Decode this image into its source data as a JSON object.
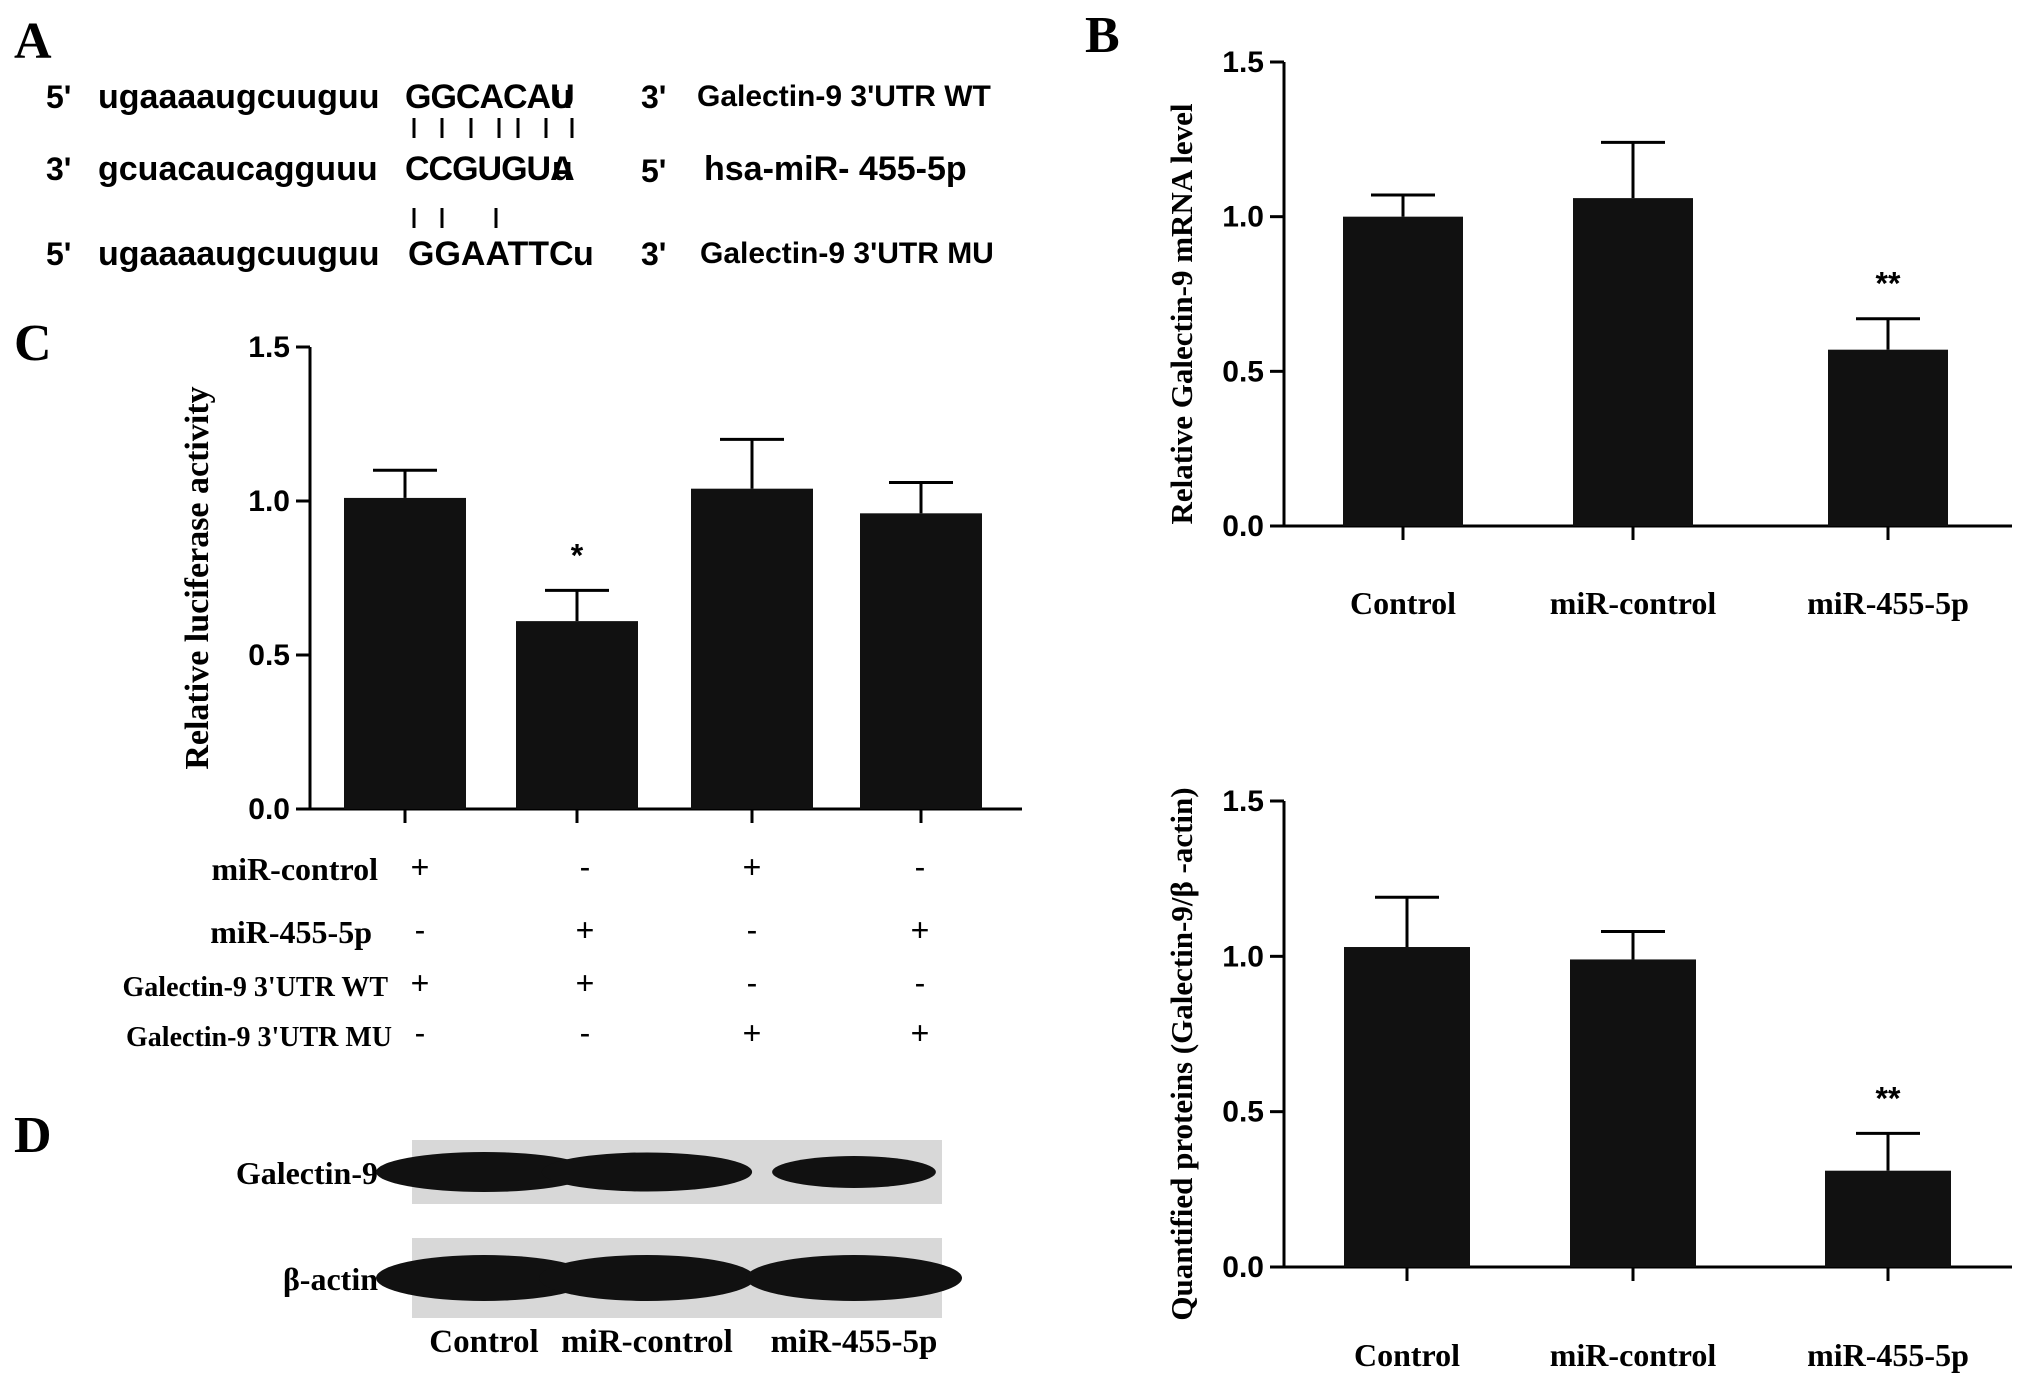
{
  "figure": {
    "panels": {
      "A": {
        "label": "A",
        "rows": [
          {
            "left_end": "5'",
            "lower": "ugaaaaugcuuguu",
            "site": "GGCACAU",
            "tail": "u",
            "right_end": "3'",
            "name": "Galectin-9 3'UTR WT"
          },
          {
            "left_end": "3'",
            "lower": "gcuacaucagguuu",
            "site": "CCGUGUA",
            "tail": "u",
            "right_end": "5'",
            "name": "hsa-miR- 455-5p"
          },
          {
            "left_end": "5'",
            "lower": "ugaaaaugcuuguu",
            "site": "GGAATTC",
            "tail": "u",
            "right_end": "3'",
            "name": "Galectin-9 3'UTR MU"
          }
        ]
      },
      "B": {
        "label": "B"
      },
      "C": {
        "label": "C",
        "table_rows": [
          {
            "label": "miR-control",
            "values": [
              "+",
              "-",
              "+",
              "-"
            ]
          },
          {
            "label": "miR-455-5p",
            "values": [
              "-",
              "+",
              "-",
              "+"
            ]
          },
          {
            "label": "Galectin-9 3'UTR WT",
            "values": [
              "+",
              "+",
              "-",
              "-"
            ]
          },
          {
            "label": "Galectin-9 3'UTR MU",
            "values": [
              "-",
              "-",
              "+",
              "+"
            ]
          }
        ]
      },
      "D": {
        "label": "D",
        "blot_labels": [
          "Galectin-9",
          "β-actin"
        ],
        "lanes": [
          "Control",
          "miR-control",
          "miR-455-5p"
        ],
        "relative_band_intensity": {
          "Galectin-9": [
            1.0,
            0.95,
            0.55
          ],
          "β-actin": [
            1.0,
            1.0,
            1.0
          ]
        }
      }
    }
  },
  "chart_data": [
    {
      "id": "B-top",
      "type": "bar",
      "categories": [
        "Control",
        "miR-control",
        "miR-455-5p"
      ],
      "values": [
        1.0,
        1.06,
        0.57
      ],
      "errors": [
        0.07,
        0.18,
        0.1
      ],
      "annotations": [
        "",
        "",
        "**"
      ],
      "ylabel": "Relative Galectin-9 mRNA level",
      "xlabel": "",
      "ylim": [
        0,
        1.5
      ],
      "yticks": [
        "0.0",
        "0.5",
        "1.0",
        "1.5"
      ],
      "bar_color": "#111111"
    },
    {
      "id": "C",
      "type": "bar",
      "categories": [
        "",
        "",
        "",
        ""
      ],
      "values": [
        1.01,
        0.61,
        1.04,
        0.96
      ],
      "errors": [
        0.09,
        0.1,
        0.16,
        0.1
      ],
      "annotations": [
        "",
        "*",
        "",
        ""
      ],
      "ylabel": "Relative luciferase activity",
      "xlabel": "",
      "ylim": [
        0,
        1.5
      ],
      "yticks": [
        "0.0",
        "0.5",
        "1.0",
        "1.5"
      ],
      "bar_color": "#111111"
    },
    {
      "id": "B-bottom",
      "type": "bar",
      "categories": [
        "Control",
        "miR-control",
        "miR-455-5p"
      ],
      "values": [
        1.03,
        0.99,
        0.31
      ],
      "errors": [
        0.16,
        0.09,
        0.12
      ],
      "annotations": [
        "",
        "",
        "**"
      ],
      "ylabel": "Quantified proteins (Galectin-9/β -actin)",
      "xlabel": "",
      "ylim": [
        0,
        1.5
      ],
      "yticks": [
        "0.0",
        "0.5",
        "1.0",
        "1.5"
      ],
      "bar_color": "#111111"
    }
  ]
}
